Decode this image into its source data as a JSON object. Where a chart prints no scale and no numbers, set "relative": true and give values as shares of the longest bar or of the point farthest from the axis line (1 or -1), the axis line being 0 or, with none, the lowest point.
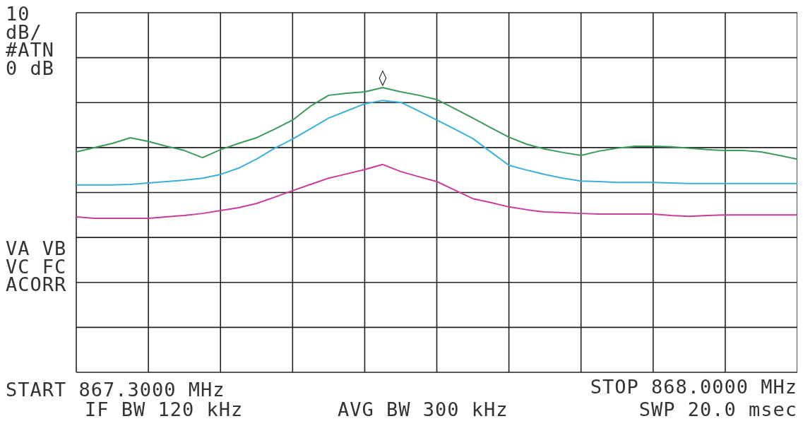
{
  "chart_data": {
    "type": "line",
    "relative": true,
    "grid": true,
    "legend": false,
    "marker": "none",
    "categories": [
      null,
      null,
      null,
      null,
      null,
      null,
      null,
      null,
      null,
      null,
      null,
      null,
      null,
      null,
      null,
      null,
      null,
      null,
      null,
      null,
      null,
      null,
      null,
      null,
      null,
      null,
      null,
      null,
      null,
      null,
      null,
      null,
      null,
      null,
      null,
      null,
      null,
      null,
      null,
      null,
      null
    ],
    "series": [
      {
        "color": "#3a9a5a",
        "values": [
          0.774,
          0.789,
          0.804,
          0.824,
          0.811,
          0.794,
          0.779,
          0.754,
          0.782,
          0.804,
          0.824,
          0.854,
          0.886,
          0.935,
          0.973,
          0.98,
          0.985,
          1,
          0.985,
          0.973,
          0.958,
          0.926,
          0.893,
          0.859,
          0.826,
          0.801,
          0.784,
          0.772,
          0.762,
          0.777,
          0.787,
          0.794,
          0.794,
          0.792,
          0.787,
          0.782,
          0.779,
          0.779,
          0.774,
          0.762,
          0.749
        ]
      },
      {
        "color": "#3ab0d8",
        "values": [
          0.658,
          0.658,
          0.658,
          0.66,
          0.665,
          0.67,
          0.675,
          0.682,
          0.695,
          0.717,
          0.749,
          0.787,
          0.819,
          0.856,
          0.893,
          0.918,
          0.943,
          0.955,
          0.948,
          0.918,
          0.886,
          0.854,
          0.821,
          0.774,
          0.727,
          0.71,
          0.695,
          0.682,
          0.672,
          0.67,
          0.667,
          0.667,
          0.667,
          0.665,
          0.663,
          0.663,
          0.663,
          0.663,
          0.663,
          0.663,
          0.663
        ]
      },
      {
        "color": "#c83c9c",
        "values": [
          0.546,
          0.541,
          0.541,
          0.541,
          0.541,
          0.546,
          0.551,
          0.558,
          0.568,
          0.578,
          0.593,
          0.615,
          0.638,
          0.66,
          0.682,
          0.697,
          0.712,
          0.73,
          0.705,
          0.687,
          0.67,
          0.64,
          0.61,
          0.596,
          0.581,
          0.571,
          0.563,
          0.561,
          0.558,
          0.556,
          0.556,
          0.556,
          0.556,
          0.551,
          0.548,
          0.551,
          0.553,
          0.553,
          0.553,
          0.553,
          0.553
        ]
      }
    ],
    "annotations": [
      "10",
      "dB/",
      "#ATN",
      "0 dB",
      "VA VB",
      "VC FC",
      "ACORR",
      "START 867.3000 MHz",
      "STOP 868.0000 MHz",
      "IF BW 120 kHz",
      "AVG BW 300 kHz",
      "SWP 20.0 msec",
      "◊"
    ]
  }
}
